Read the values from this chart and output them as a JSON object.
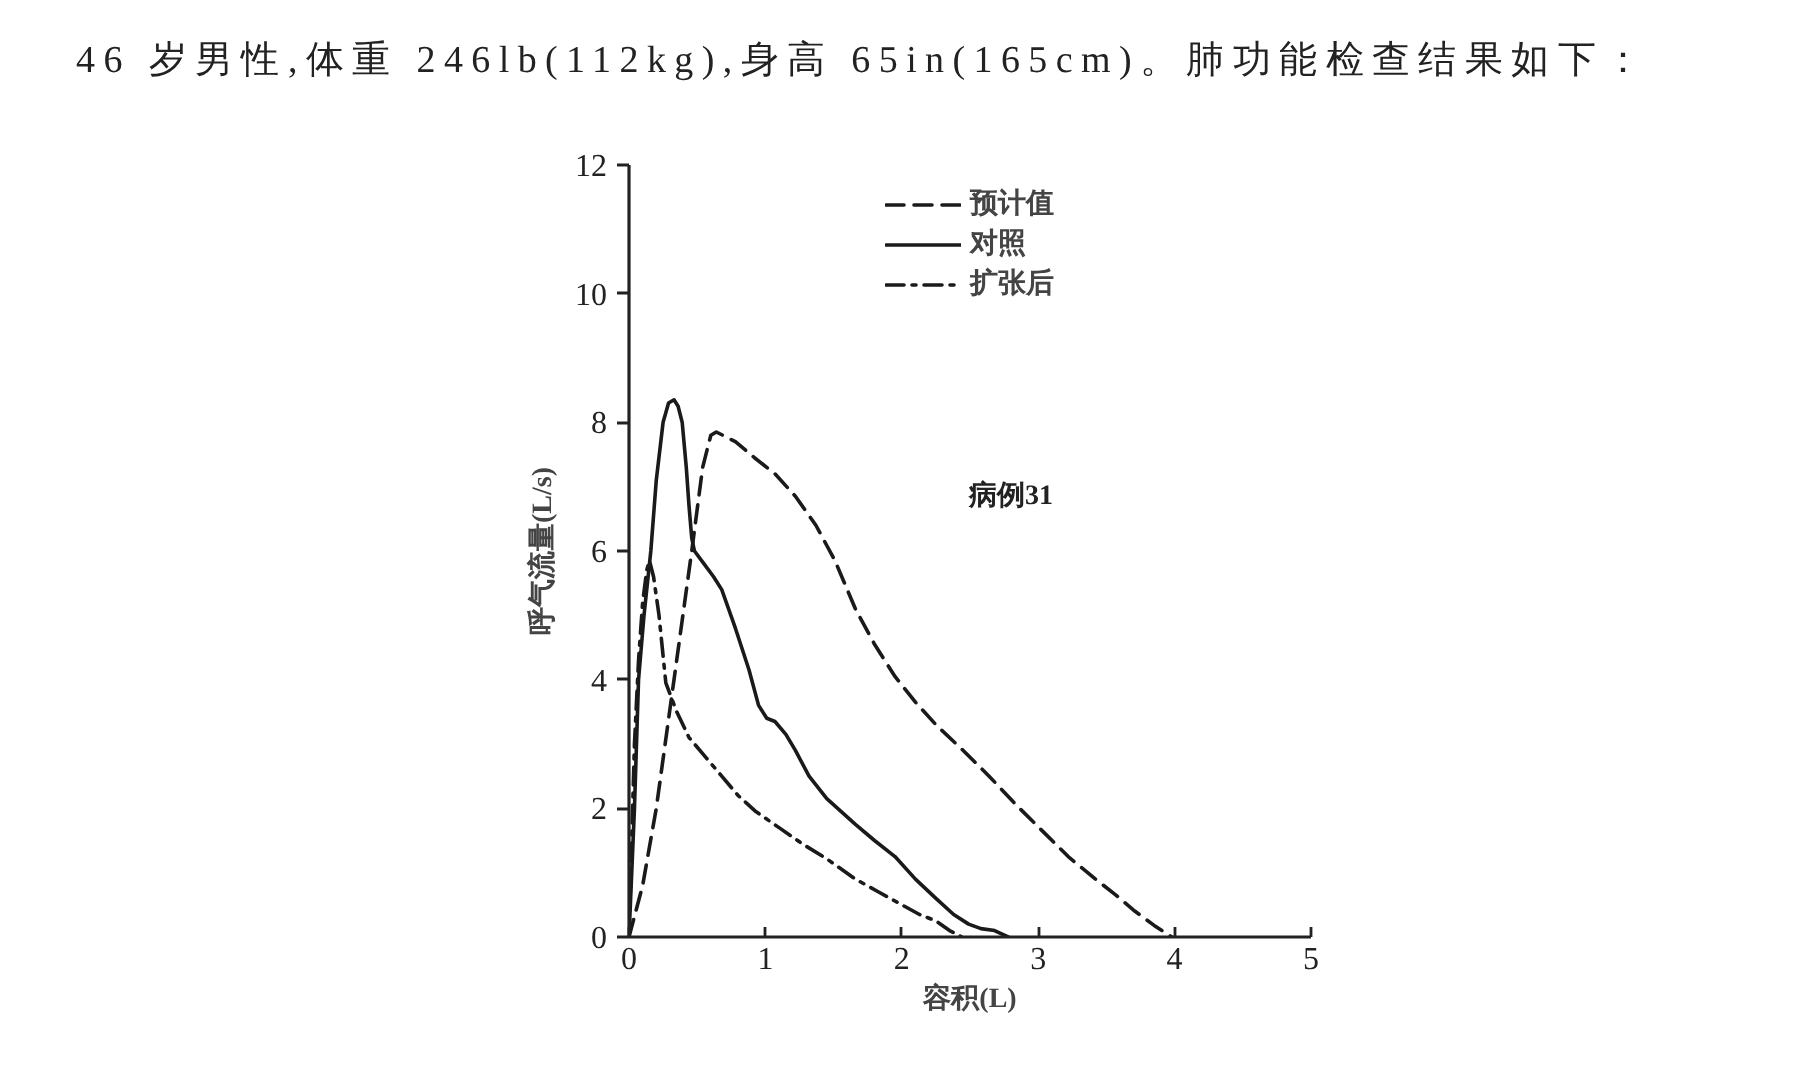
{
  "chart_data": {
    "type": "line",
    "title": "46 岁男性,体重 246lb(112kg),身高 65in(165cm)。肺功能检查结果如下：",
    "xlabel": "容积(L)",
    "ylabel": "呼气流量(L/s)",
    "xlim": [
      0,
      5
    ],
    "ylim": [
      0,
      12
    ],
    "xticks": [
      0,
      1,
      2,
      3,
      4,
      5
    ],
    "yticks": [
      0,
      2,
      4,
      6,
      8,
      10,
      12
    ],
    "legend": "top",
    "annotations": [
      "病例31"
    ],
    "series": [
      {
        "name": "预计值",
        "color": "#1a1a1a",
        "line_style": "dashed",
        "x": [
          0,
          0.1,
          0.2,
          0.33,
          0.46,
          0.54,
          0.6,
          0.64,
          0.78,
          0.92,
          1.07,
          1.22,
          1.37,
          1.51,
          1.66,
          1.8,
          1.95,
          2.1,
          2.25,
          2.45,
          2.64,
          2.84,
          3.03,
          3.22,
          3.42,
          3.57,
          3.71,
          3.85,
          3.98
        ],
        "values": [
          0,
          0.8,
          2.0,
          4.0,
          6.0,
          7.3,
          7.8,
          7.85,
          7.7,
          7.45,
          7.2,
          6.85,
          6.4,
          5.85,
          5.1,
          4.55,
          4.05,
          3.65,
          3.3,
          2.9,
          2.5,
          2.05,
          1.65,
          1.25,
          0.9,
          0.65,
          0.4,
          0.18,
          0
        ]
      },
      {
        "name": "对照",
        "color": "#1a1a1a",
        "line_style": "solid",
        "x": [
          0,
          0.02,
          0.04,
          0.07,
          0.11,
          0.16,
          0.2,
          0.25,
          0.29,
          0.33,
          0.36,
          0.39,
          0.42,
          0.44,
          0.46,
          0.48,
          0.55,
          0.62,
          0.68,
          0.78,
          0.88,
          0.95,
          1.01,
          1.07,
          1.15,
          1.22,
          1.32,
          1.45,
          1.66,
          1.8,
          1.95,
          2.1,
          2.25,
          2.38,
          2.49,
          2.58,
          2.68,
          2.78
        ],
        "values": [
          0,
          1.0,
          2.0,
          4.0,
          5.0,
          6.0,
          7.1,
          8.0,
          8.3,
          8.35,
          8.25,
          8.0,
          7.3,
          6.7,
          6.2,
          6.0,
          5.8,
          5.6,
          5.4,
          4.8,
          4.15,
          3.6,
          3.4,
          3.35,
          3.15,
          2.9,
          2.5,
          2.15,
          1.75,
          1.5,
          1.25,
          0.9,
          0.6,
          0.35,
          0.2,
          0.13,
          0.1,
          0
        ]
      },
      {
        "name": "扩张后",
        "color": "#1a1a1a",
        "line_style": "dashdot",
        "x": [
          0,
          0.02,
          0.04,
          0.07,
          0.1,
          0.13,
          0.15,
          0.18,
          0.22,
          0.27,
          0.35,
          0.44,
          0.56,
          0.68,
          0.8,
          0.93,
          1.1,
          1.27,
          1.46,
          1.66,
          1.83,
          2.0,
          2.13,
          2.25,
          2.35,
          2.44
        ],
        "values": [
          0,
          1.5,
          3.0,
          4.3,
          5.2,
          5.7,
          5.85,
          5.6,
          5.0,
          3.95,
          3.5,
          3.1,
          2.8,
          2.5,
          2.2,
          1.95,
          1.7,
          1.45,
          1.2,
          0.9,
          0.7,
          0.5,
          0.35,
          0.25,
          0.1,
          0
        ]
      }
    ]
  }
}
